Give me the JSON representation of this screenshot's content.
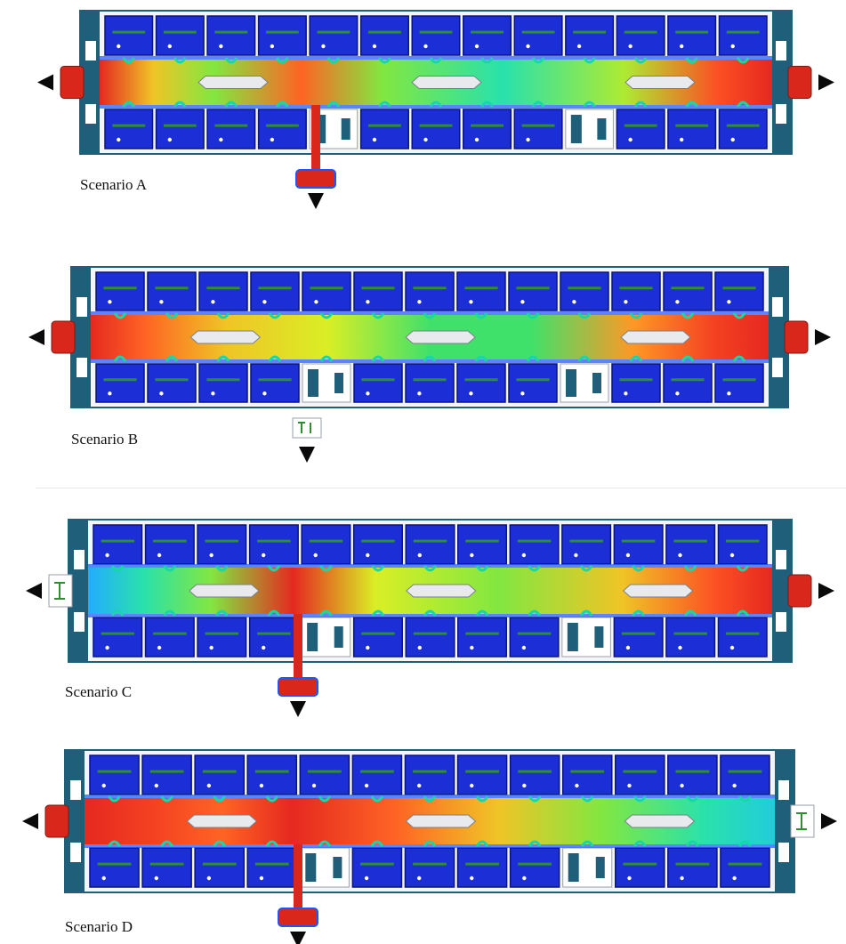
{
  "colors": {
    "background": "#ffffff",
    "room_fill": "#1c2fd6",
    "room_edge": "#0a1480",
    "wall": "#1f5f7a",
    "corridor": "#f4f5f8",
    "seat_line": "#2f8f2f",
    "outlet": "#d9271c",
    "arrow": "#0a0a0a",
    "heat_scale": [
      "#18a8ff",
      "#16e0c0",
      "#3fe04a",
      "#d8ee1a",
      "#ffa51c",
      "#ff4a18",
      "#e41e14"
    ]
  },
  "icons": {
    "exit_direction": "triangle-arrow-icon",
    "exit_door": "exit-door-icon"
  },
  "panels": [
    {
      "caption": "Scenario A",
      "heat": [
        {
          "pos": 0.0,
          "level": 1.0
        },
        {
          "pos": 0.08,
          "level": 0.6
        },
        {
          "pos": 0.17,
          "level": 0.4
        },
        {
          "pos": 0.3,
          "level": 0.8
        },
        {
          "pos": 0.42,
          "level": 0.4
        },
        {
          "pos": 0.6,
          "level": 0.2
        },
        {
          "pos": 0.78,
          "level": 0.45
        },
        {
          "pos": 0.92,
          "level": 0.85
        },
        {
          "pos": 1.0,
          "level": 1.0
        }
      ],
      "exits": {
        "left": "open",
        "right": "open",
        "bottom": "open"
      }
    },
    {
      "caption": "Scenario B",
      "heat": [
        {
          "pos": 0.0,
          "level": 1.0
        },
        {
          "pos": 0.08,
          "level": 0.8
        },
        {
          "pos": 0.2,
          "level": 0.6
        },
        {
          "pos": 0.35,
          "level": 0.5
        },
        {
          "pos": 0.5,
          "level": 0.3
        },
        {
          "pos": 0.65,
          "level": 0.3
        },
        {
          "pos": 0.8,
          "level": 0.7
        },
        {
          "pos": 0.92,
          "level": 0.9
        },
        {
          "pos": 1.0,
          "level": 1.0
        }
      ],
      "exits": {
        "left": "open",
        "right": "open",
        "bottom": "closed"
      }
    },
    {
      "caption": "Scenario C",
      "heat": [
        {
          "pos": 0.0,
          "level": 0.0
        },
        {
          "pos": 0.08,
          "level": 0.2
        },
        {
          "pos": 0.18,
          "level": 0.4
        },
        {
          "pos": 0.3,
          "level": 1.0
        },
        {
          "pos": 0.42,
          "level": 0.5
        },
        {
          "pos": 0.6,
          "level": 0.4
        },
        {
          "pos": 0.78,
          "level": 0.6
        },
        {
          "pos": 0.92,
          "level": 0.85
        },
        {
          "pos": 1.0,
          "level": 1.0
        }
      ],
      "exits": {
        "left": "closed",
        "right": "open",
        "bottom": "open"
      }
    },
    {
      "caption": "Scenario D",
      "heat": [
        {
          "pos": 0.0,
          "level": 1.0
        },
        {
          "pos": 0.1,
          "level": 0.9
        },
        {
          "pos": 0.2,
          "level": 0.8
        },
        {
          "pos": 0.3,
          "level": 1.0
        },
        {
          "pos": 0.45,
          "level": 0.8
        },
        {
          "pos": 0.6,
          "level": 0.6
        },
        {
          "pos": 0.75,
          "level": 0.4
        },
        {
          "pos": 0.9,
          "level": 0.2
        },
        {
          "pos": 1.0,
          "level": 0.1
        }
      ],
      "exits": {
        "left": "open",
        "right": "closed",
        "bottom": "open"
      }
    }
  ]
}
